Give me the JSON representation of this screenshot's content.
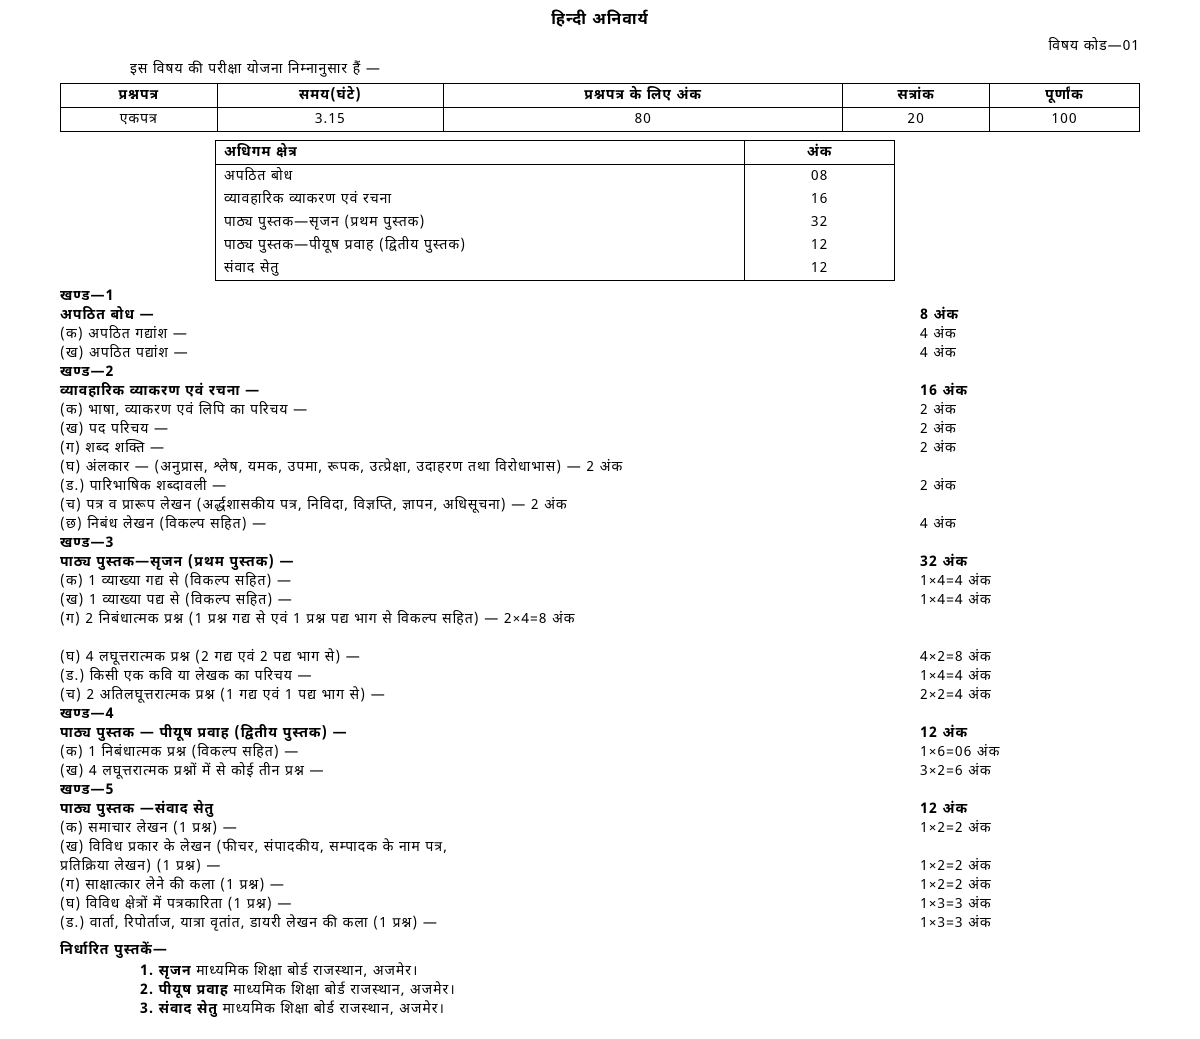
{
  "title": "हिन्दी  अनिवार्य",
  "code": "विषय  कोड—01",
  "intro": "इस  विषय  की  परीक्षा  योजना  निम्नानुसार  हैं  —",
  "t1": {
    "head": [
      "प्रश्नपत्र",
      "समय(घंटे)",
      "प्रश्नपत्र  के  लिए  अंक",
      "सत्रांक",
      "पूर्णांक"
    ],
    "row": [
      "एकपत्र",
      "3.15",
      "80",
      "20",
      "100"
    ]
  },
  "t2": {
    "head": [
      "अधिगम  क्षेत्र",
      "अंक"
    ],
    "rows": [
      [
        "अपठित  बोध",
        "08"
      ],
      [
        "व्यावहारिक  व्याकरण  एवं  रचना",
        "16"
      ],
      [
        "पाठ्य  पुस्तक—सृजन  (प्रथम  पुस्तक)",
        "32"
      ],
      [
        "पाठ्य  पुस्तक—पीयूष  प्रवाह  (द्वितीय  पुस्तक)",
        "12"
      ],
      [
        "संवाद  सेतु",
        "12"
      ]
    ]
  },
  "body": [
    {
      "t": "sec",
      "l": "खण्ड—1"
    },
    {
      "t": "row",
      "l": "  अपठित  बोध  —",
      "r": "8  अंक",
      "b": true
    },
    {
      "t": "row",
      "l": "(क)  अपठित  गद्यांश  —",
      "r": "4  अंक"
    },
    {
      "t": "row",
      "l": "(ख)  अपठित  पद्यांश  —",
      "r": "4  अंक"
    },
    {
      "t": "sec",
      "l": "खण्ड—2"
    },
    {
      "t": "row",
      "l": "व्यावहारिक  व्याकरण  एवं  रचना  —",
      "r": "16  अंक",
      "b": true
    },
    {
      "t": "row",
      "l": "(क)  भाषा,  व्याकरण  एवं  लिपि  का  परिचय  —",
      "r": "2  अंक"
    },
    {
      "t": "row",
      "l": "(ख)  पद  परिचय  —",
      "r": "2  अंक"
    },
    {
      "t": "row",
      "l": "(ग)  शब्द  शक्ति  —",
      "r": "2  अंक"
    },
    {
      "t": "line",
      "l": "(घ)  अंलकार  —  (अनुप्रास,  श्लेष,  यमक,  उपमा,  रूपक,  उत्प्रेक्षा,  उदाहरण  तथा  विरोधाभास)  —  2  अंक"
    },
    {
      "t": "row",
      "l": "(ड.)  पारिभाषिक  शब्दावली  —",
      "r": "2  अंक"
    },
    {
      "t": "line",
      "l": "(च)  पत्र  व  प्रारूप  लेखन  (अर्द्धशासकीय  पत्र,  निविदा,  विज्ञप्ति,  ज्ञापन,  अधिसूचना)  —  2  अंक"
    },
    {
      "t": "row",
      "l": "(छ)  निबंध  लेखन  (विकल्प  सहित)  —",
      "r": "4  अंक"
    },
    {
      "t": "sec",
      "l": "खण्ड—3"
    },
    {
      "t": "row",
      "l": "पाठ्य  पुस्तक—सृजन  (प्रथम  पुस्तक)  —",
      "r": "32  अंक",
      "b": true
    },
    {
      "t": "row",
      "l": "(क)  1  व्याख्या  गद्य  से  (विकल्प  सहित)  —",
      "r": "1×4=4  अंक"
    },
    {
      "t": "row",
      "l": "(ख)  1  व्याख्या  पद्य  से  (विकल्प  सहित)  —",
      "r": "1×4=4  अंक"
    },
    {
      "t": "line",
      "l": "(ग)  2  निबंधात्मक  प्रश्न  (1  प्रश्न  गद्य  से  एवं  1  प्रश्न  पद्य  भाग  से  विकल्प  सहित)  —  2×4=8  अंक"
    },
    {
      "t": "blank"
    },
    {
      "t": "row",
      "l": "(घ)  4  लघूत्तरात्मक  प्रश्न  (2  गद्य  एवं  2  पद्य  भाग  से)  —",
      "r": "4×2=8  अंक"
    },
    {
      "t": "row",
      "l": "(ड.)  किसी  एक  कवि  या  लेखक  का  परिचय  —",
      "r": "1×4=4  अंक"
    },
    {
      "t": "row",
      "l": "(च)  2  अतिलघूत्तरात्मक  प्रश्न  (1  गद्य  एवं  1  पद्य  भाग  से)  —",
      "r": "2×2=4  अंक"
    },
    {
      "t": "sec",
      "l": "खण्ड—4"
    },
    {
      "t": "row",
      "l": "पाठ्य  पुस्तक  —  पीयूष  प्रवाह  (द्वितीय  पुस्तक)  —",
      "r": "12  अंक",
      "b": true
    },
    {
      "t": "row",
      "l": "(क)  1  निबंधात्मक  प्रश्न  (विकल्प  सहित)  —",
      "r": "1×6=06  अंक"
    },
    {
      "t": "row",
      "l": "(ख)  4  लघूत्तरात्मक  प्रश्नों  में  से  कोई  तीन  प्रश्न  —",
      "r": "3×2=6  अंक"
    },
    {
      "t": "sec",
      "l": "खण्ड—5"
    },
    {
      "t": "row",
      "l": "पाठ्य  पुस्तक  —संवाद  सेतु",
      "r": "12  अंक",
      "b": true
    },
    {
      "t": "row",
      "l": "(क)  समाचार  लेखन  (1  प्रश्न)  —",
      "r": "1×2=2  अंक"
    },
    {
      "t": "line",
      "l": "(ख)  विविध  प्रकार  के  लेखन  (फीचर,  संपादकीय,  सम्पादक  के  नाम  पत्र,"
    },
    {
      "t": "row",
      "l": "      प्रतिक्रिया  लेखन)  (1  प्रश्न)  —",
      "r": "1×2=2  अंक"
    },
    {
      "t": "row",
      "l": "(ग)  साक्षात्कार  लेने  की  कला  (1  प्रश्न)  —",
      "r": "1×2=2  अंक"
    },
    {
      "t": "row",
      "l": "(घ)  विविध  क्षेत्रों  में  पत्रकारिता  (1  प्रश्न)  —",
      "r": "1×3=3  अंक"
    },
    {
      "t": "row",
      "l": "(ड.)  वार्ता,  रिपोर्ताज,  यात्रा  वृतांत,  डायरी  लेखन  की  कला  (1  प्रश्न)  —",
      "r": "1×3=3  अंक"
    }
  ],
  "books": {
    "head": "निर्धारित  पुस्तकें—",
    "items": [
      {
        "n": "1.",
        "b": "सृजन",
        "rest": "   माध्यमिक  शिक्षा  बोर्ड  राजस्थान,  अजमेर।"
      },
      {
        "n": "2.",
        "b": "पीयूष  प्रवाह",
        "rest": "  माध्यमिक  शिक्षा  बोर्ड  राजस्थान,  अजमेर।"
      },
      {
        "n": "3.",
        "b": "संवाद  सेतु",
        "rest": "  माध्यमिक  शिक्षा  बोर्ड  राजस्थान,  अजमेर।"
      }
    ]
  }
}
